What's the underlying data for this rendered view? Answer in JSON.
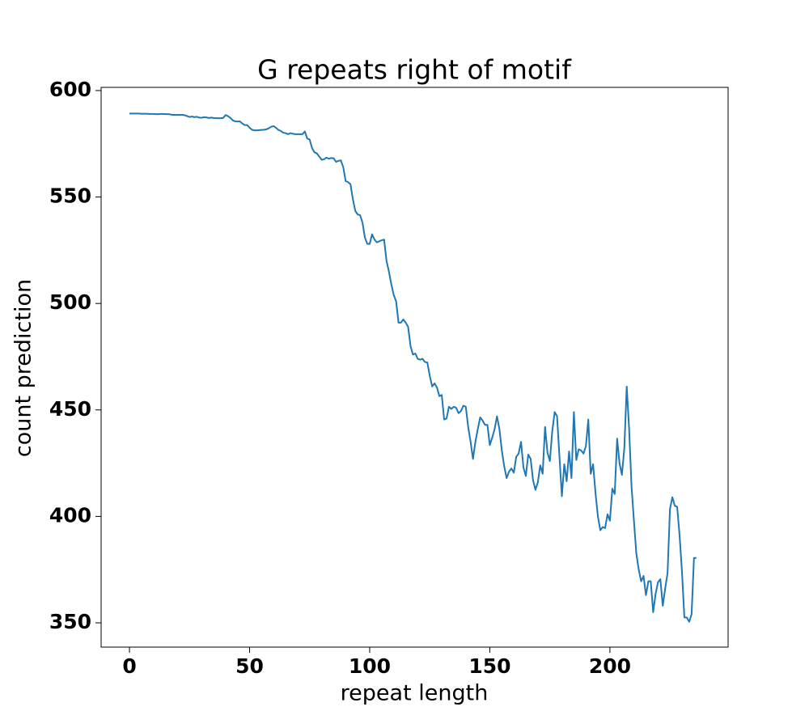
{
  "chart_data": {
    "type": "line",
    "title": "G repeats right of motif",
    "xlabel": "repeat length",
    "ylabel": "count prediction",
    "x": [
      0,
      1,
      2,
      3,
      4,
      5,
      6,
      7,
      8,
      9,
      10,
      11,
      12,
      13,
      14,
      15,
      16,
      17,
      18,
      19,
      20,
      21,
      22,
      23,
      24,
      25,
      26,
      27,
      28,
      29,
      30,
      31,
      32,
      33,
      34,
      35,
      36,
      37,
      38,
      39,
      40,
      41,
      42,
      43,
      44,
      45,
      46,
      47,
      48,
      49,
      50,
      51,
      52,
      53,
      54,
      55,
      56,
      57,
      58,
      59,
      60,
      61,
      62,
      63,
      64,
      65,
      66,
      67,
      68,
      69,
      70,
      71,
      72,
      73,
      74,
      75,
      76,
      77,
      78,
      79,
      80,
      81,
      82,
      83,
      84,
      85,
      86,
      87,
      88,
      89,
      90,
      91,
      92,
      93,
      94,
      95,
      96,
      97,
      98,
      99,
      100,
      101,
      102,
      103,
      104,
      105,
      106,
      107,
      108,
      109,
      110,
      111,
      112,
      113,
      114,
      115,
      116,
      117,
      118,
      119,
      120,
      121,
      122,
      123,
      124,
      125,
      126,
      127,
      128,
      129,
      130,
      131,
      132,
      133,
      134,
      135,
      136,
      137,
      138,
      139,
      140,
      141,
      142,
      143,
      144,
      145,
      146,
      147,
      148,
      149,
      150,
      151,
      152,
      153,
      154,
      155,
      156,
      157,
      158,
      159,
      160,
      161,
      162,
      163,
      164,
      165,
      166,
      167,
      168,
      169,
      170,
      171,
      172,
      173,
      174,
      175,
      176,
      177,
      178,
      179,
      180,
      181,
      182,
      183,
      184,
      185,
      186,
      187,
      188,
      189,
      190,
      191,
      192,
      193,
      194,
      195,
      196,
      197,
      198,
      199,
      200,
      201,
      202,
      203,
      204,
      205,
      206,
      207,
      208,
      209,
      210,
      211,
      212,
      213,
      214,
      215,
      216,
      217,
      218,
      219,
      220,
      221,
      222,
      223,
      224,
      225,
      226,
      227,
      228,
      229,
      230,
      231,
      232,
      233,
      234,
      235,
      236
    ],
    "values": [
      589.2,
      589.2,
      589.2,
      589.2,
      589.2,
      589.1,
      589.1,
      589.1,
      589,
      589,
      589,
      588.9,
      588.9,
      589,
      589,
      588.9,
      588.9,
      588.8,
      588.6,
      588.6,
      588.6,
      588.6,
      588.6,
      588.4,
      588,
      587.6,
      587.8,
      587.5,
      587.7,
      587.3,
      587.2,
      587.5,
      587.4,
      587.1,
      587.3,
      587.1,
      587,
      587,
      587,
      587.1,
      588.5,
      588,
      587.2,
      586,
      585.5,
      585.5,
      585.5,
      584.5,
      583.8,
      583.8,
      582.5,
      581.6,
      581.3,
      581.3,
      581.4,
      581.5,
      581.6,
      581.8,
      582.3,
      583,
      583.3,
      582.5,
      581.5,
      581,
      580.2,
      580,
      579.5,
      580,
      579.7,
      579.5,
      579.5,
      579.5,
      579.5,
      580.8,
      577.5,
      577,
      573,
      571,
      570.5,
      569,
      567.5,
      567.7,
      568.5,
      568,
      568.3,
      568.2,
      566.5,
      567,
      567.2,
      564,
      557.5,
      557,
      556,
      549,
      543.5,
      541.8,
      541.5,
      538,
      531,
      528,
      528,
      532.5,
      530,
      528.7,
      529.2,
      529.7,
      530,
      520,
      515,
      509,
      504,
      501,
      491,
      491,
      492.5,
      491,
      489,
      480,
      476,
      476.5,
      474,
      473.6,
      474,
      472.5,
      472.3,
      466,
      461,
      462.5,
      460.5,
      456.5,
      457,
      445.5,
      446,
      451.5,
      450.5,
      451.5,
      451,
      448.5,
      449.5,
      452,
      451.5,
      442,
      435,
      427,
      435,
      441,
      446.5,
      445,
      443,
      443,
      433.5,
      437,
      441,
      447,
      441,
      431,
      423.5,
      418,
      421,
      422.5,
      420.5,
      428,
      429.5,
      435,
      423,
      419,
      429,
      427,
      417,
      412.5,
      416,
      424,
      420,
      442,
      430,
      426,
      440,
      449,
      447,
      428,
      409.5,
      424.5,
      416.5,
      430.5,
      418,
      449,
      426.5,
      431.5,
      431,
      429.5,
      433,
      445.5,
      420,
      424.5,
      411,
      400,
      393.5,
      395,
      394.5,
      401,
      398,
      413,
      410.5,
      436.5,
      425,
      419.5,
      432,
      461,
      441,
      414,
      398,
      382.5,
      375,
      369.5,
      372,
      363,
      369.5,
      369.5,
      355,
      363.5,
      369,
      370.5,
      358,
      366,
      373.5,
      403.5,
      409,
      405,
      404.5,
      391,
      374,
      352.5,
      352.5,
      350.5,
      354,
      380.5,
      380.5
    ],
    "color": "#1f77b4",
    "xlim": [
      -11.8,
      249.2
    ],
    "xticks": [
      0,
      50,
      100,
      150,
      200
    ],
    "ylim": [
      338.6,
      601.5
    ],
    "yticks": [
      350,
      400,
      450,
      500,
      550,
      600
    ]
  }
}
